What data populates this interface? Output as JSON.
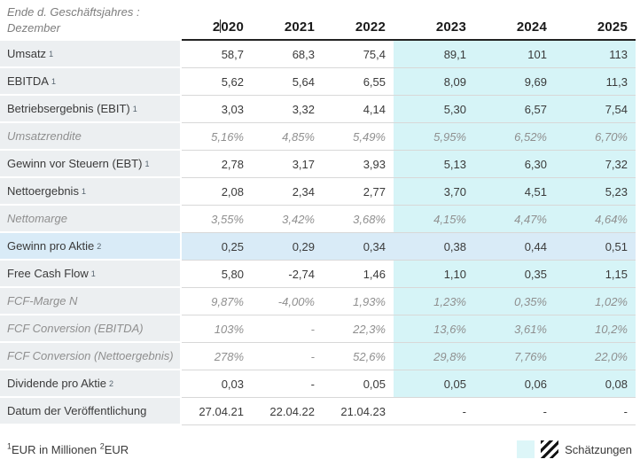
{
  "header": {
    "period_line1": "Ende d. Geschäftsjahres :",
    "period_line2": "Dezember",
    "years": [
      "2020",
      "2021",
      "2022",
      "2023",
      "2024",
      "2025"
    ],
    "estimate_year_start_index": 3,
    "text_cursor": {
      "year_index": 0,
      "after_chars": 1
    }
  },
  "table": {
    "rows": [
      {
        "label": "Umsatz",
        "sup": "1",
        "style": "normal",
        "values": [
          "58,7",
          "68,3",
          "75,4",
          "89,1",
          "101",
          "113"
        ]
      },
      {
        "label": "EBITDA",
        "sup": "1",
        "style": "normal",
        "values": [
          "5,62",
          "5,64",
          "6,55",
          "8,09",
          "9,69",
          "11,3"
        ]
      },
      {
        "label": "Betriebsergebnis (EBIT)",
        "sup": "1",
        "style": "normal",
        "values": [
          "3,03",
          "3,32",
          "4,14",
          "5,30",
          "6,57",
          "7,54"
        ]
      },
      {
        "label": "Umsatzrendite",
        "sup": "",
        "style": "ratio",
        "values": [
          "5,16%",
          "4,85%",
          "5,49%",
          "5,95%",
          "6,52%",
          "6,70%"
        ]
      },
      {
        "label": "Gewinn vor Steuern (EBT)",
        "sup": "1",
        "style": "normal",
        "values": [
          "2,78",
          "3,17",
          "3,93",
          "5,13",
          "6,30",
          "7,32"
        ]
      },
      {
        "label": "Nettoergebnis",
        "sup": "1",
        "style": "normal",
        "values": [
          "2,08",
          "2,34",
          "2,77",
          "3,70",
          "4,51",
          "5,23"
        ]
      },
      {
        "label": "Nettomarge",
        "sup": "",
        "style": "ratio",
        "values": [
          "3,55%",
          "3,42%",
          "3,68%",
          "4,15%",
          "4,47%",
          "4,64%"
        ]
      },
      {
        "label": "Gewinn pro Aktie",
        "sup": "2",
        "style": "normal",
        "highlighted": true,
        "values": [
          "0,25",
          "0,29",
          "0,34",
          "0,38",
          "0,44",
          "0,51"
        ]
      },
      {
        "label": "Free Cash Flow",
        "sup": "1",
        "style": "normal",
        "values": [
          "5,80",
          "-2,74",
          "1,46",
          "1,10",
          "0,35",
          "1,15"
        ]
      },
      {
        "label": "FCF-Marge N",
        "sup": "",
        "style": "ratio",
        "values": [
          "9,87%",
          "-4,00%",
          "1,93%",
          "1,23%",
          "0,35%",
          "1,02%"
        ]
      },
      {
        "label": "FCF Conversion (EBITDA)",
        "sup": "",
        "style": "ratio",
        "values": [
          "103%",
          "-",
          "22,3%",
          "13,6%",
          "3,61%",
          "10,2%"
        ]
      },
      {
        "label": "FCF Conversion (Nettoergebnis)",
        "sup": "",
        "style": "ratio",
        "values": [
          "278%",
          "-",
          "52,6%",
          "29,8%",
          "7,76%",
          "22,0%"
        ]
      },
      {
        "label": "Dividende pro Aktie",
        "sup": "2",
        "style": "normal",
        "values": [
          "0,03",
          "-",
          "0,05",
          "0,05",
          "0,06",
          "0,08"
        ]
      },
      {
        "label": "Datum der Veröffentlichung",
        "sup": "",
        "style": "normal",
        "no_estimate_bg": true,
        "values": [
          "27.04.21",
          "22.04.22",
          "21.04.23",
          "-",
          "-",
          "-"
        ]
      }
    ]
  },
  "footer": {
    "note1_sup": "1",
    "note1_text": "EUR in Millionen",
    "note2_sup": "2",
    "note2_text": "EUR",
    "legend_label": "Schätzungen"
  },
  "colors": {
    "estimate_bg": "#d6f4f7",
    "highlight_row_bg": "#d9ebf7",
    "label_column_bg": "#eceff1",
    "header_underline": "#222222",
    "row_divider": "#d8d8d8"
  }
}
